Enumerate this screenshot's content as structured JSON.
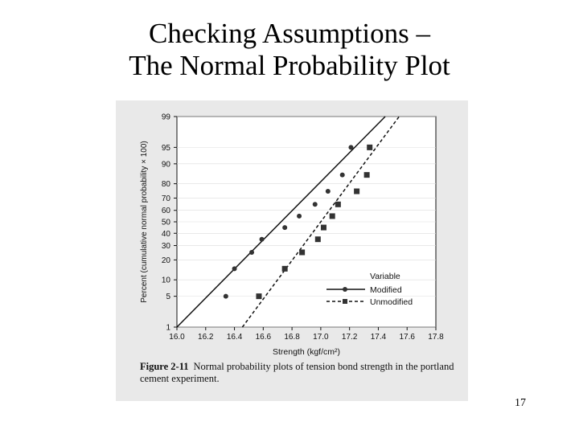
{
  "slide": {
    "title_line1": "Checking Assumptions –",
    "title_line2": "The Normal Probability Plot",
    "page_number": "17"
  },
  "caption": {
    "figure_number": "Figure 2-11",
    "text": "Normal probability plots of tension bond strength in the portland cement experiment."
  },
  "chart_data": {
    "type": "scatter",
    "xlabel": "Strength (kgf/cm²)",
    "ylabel": "Percent (cumulative normal probability × 100)",
    "xlim": [
      16.0,
      17.8
    ],
    "x_ticks": [
      "16.0",
      "16.2",
      "16.4",
      "16.6",
      "16.8",
      "17.0",
      "17.2",
      "17.4",
      "17.6",
      "17.8"
    ],
    "y_ticks": [
      "1",
      "5",
      "10",
      "20",
      "30",
      "40",
      "50",
      "60",
      "70",
      "80",
      "90",
      "95",
      "99"
    ],
    "y_scale": "normal-probability",
    "ylim": [
      1,
      99
    ],
    "legend": {
      "title": "Variable",
      "position": "lower-right",
      "entries": [
        "Modified",
        "Unmodified"
      ]
    },
    "series": [
      {
        "name": "Modified",
        "marker": "circle",
        "line": "solid",
        "x": [
          16.34,
          16.4,
          16.52,
          16.59,
          16.75,
          16.85,
          16.96,
          17.05,
          17.15,
          17.21
        ],
        "y": [
          5,
          15,
          25,
          35,
          45,
          55,
          65,
          75,
          85,
          95
        ],
        "fit_line": {
          "x": [
            16.0,
            17.448
          ],
          "y": [
            1,
            99
          ]
        }
      },
      {
        "name": "Unmodified",
        "marker": "square",
        "line": "dashed",
        "x": [
          16.57,
          16.75,
          16.87,
          16.98,
          17.02,
          17.08,
          17.12,
          17.25,
          17.32,
          17.34
        ],
        "y": [
          5,
          15,
          25,
          35,
          45,
          55,
          65,
          75,
          85,
          95
        ],
        "fit_line": {
          "x": [
            16.455,
            17.545
          ],
          "y": [
            1,
            99
          ]
        }
      }
    ]
  }
}
